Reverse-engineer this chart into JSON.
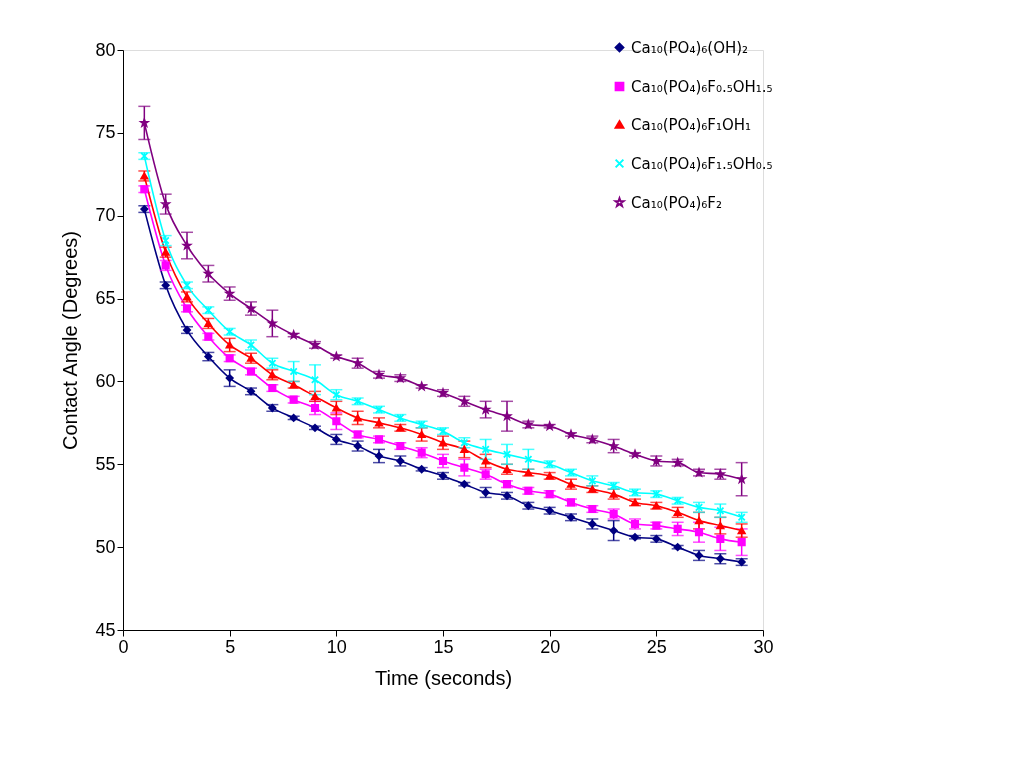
{
  "chart_data": {
    "type": "line",
    "xlabel": "Time (seconds)",
    "ylabel": "Contact Angle (Degrees)",
    "x": [
      1,
      2,
      3,
      4,
      5,
      6,
      7,
      8,
      9,
      10,
      11,
      12,
      13,
      14,
      15,
      16,
      17,
      18,
      19,
      20,
      21,
      22,
      23,
      24,
      25,
      26,
      27,
      28,
      29
    ],
    "xlim": [
      0,
      30
    ],
    "xticks": [
      0,
      5,
      10,
      15,
      20,
      25,
      30
    ],
    "ylim": [
      45,
      80
    ],
    "yticks": [
      45,
      50,
      55,
      60,
      65,
      70,
      75,
      80
    ],
    "grid": false,
    "legend": "top right",
    "series": [
      {
        "name": "Ca₁₀(PO₄)₆(OH)₂",
        "color": "#000080",
        "marker": "diamond",
        "values": [
          70.4,
          65.8,
          63.1,
          61.5,
          60.2,
          59.4,
          58.4,
          57.8,
          57.2,
          56.5,
          56.1,
          55.5,
          55.2,
          54.7,
          54.3,
          53.8,
          53.3,
          53.1,
          52.5,
          52.2,
          51.8,
          51.4,
          51.0,
          50.6,
          50.5,
          50.0,
          49.5,
          49.3,
          49.1
        ],
        "errors": [
          0.2,
          0.2,
          0.2,
          0.25,
          0.5,
          0.2,
          0.2,
          0.1,
          0.1,
          0.3,
          0.3,
          0.4,
          0.3,
          0.1,
          0.2,
          0.1,
          0.3,
          0.2,
          0.2,
          0.2,
          0.2,
          0.3,
          0.6,
          0.1,
          0.2,
          0.1,
          0.3,
          0.3,
          0.2
        ]
      },
      {
        "name": "Ca₁₀(PO₄)₆F₀.₅OH₁.₅",
        "color": "#ff00ff",
        "marker": "square",
        "values": [
          71.6,
          67.0,
          64.4,
          62.7,
          61.4,
          60.6,
          59.6,
          58.9,
          58.4,
          57.6,
          56.8,
          56.5,
          56.1,
          55.7,
          55.2,
          54.8,
          54.4,
          53.8,
          53.4,
          53.2,
          52.7,
          52.3,
          52.0,
          51.4,
          51.3,
          51.1,
          50.9,
          50.5,
          50.3
        ],
        "errors": [
          0.2,
          0.3,
          0.2,
          0.2,
          0.2,
          0.2,
          0.2,
          0.2,
          0.4,
          0.5,
          0.2,
          0.2,
          0.2,
          0.3,
          0.4,
          0.5,
          0.3,
          0.2,
          0.2,
          0.2,
          0.2,
          0.2,
          0.3,
          0.3,
          0.2,
          0.4,
          0.6,
          0.7,
          0.8
        ]
      },
      {
        "name": "Ca₁₀(PO₄)₆F₁OH₁",
        "color": "#ff0000",
        "marker": "triangle",
        "values": [
          72.4,
          67.8,
          65.1,
          63.5,
          62.2,
          61.4,
          60.4,
          59.8,
          59.1,
          58.4,
          57.8,
          57.5,
          57.2,
          56.8,
          56.3,
          55.9,
          55.2,
          54.7,
          54.5,
          54.3,
          53.8,
          53.5,
          53.2,
          52.7,
          52.5,
          52.1,
          51.6,
          51.3,
          51.0
        ],
        "errors": [
          0.3,
          0.3,
          0.3,
          0.3,
          0.4,
          0.3,
          0.3,
          0.2,
          0.3,
          0.4,
          0.4,
          0.3,
          0.2,
          0.4,
          0.4,
          0.5,
          0.4,
          0.3,
          0.2,
          0.2,
          0.3,
          0.2,
          0.3,
          0.2,
          0.2,
          0.3,
          0.5,
          0.5,
          0.4
        ]
      },
      {
        "name": "Ca₁₀(PO₄)₆F₁.₅OH₀.₅",
        "color": "#00ffff",
        "marker": "cross",
        "values": [
          73.6,
          68.5,
          65.8,
          64.3,
          63.0,
          62.2,
          61.1,
          60.6,
          60.1,
          59.2,
          58.8,
          58.3,
          57.8,
          57.4,
          57.0,
          56.3,
          55.9,
          55.6,
          55.3,
          55.0,
          54.5,
          54.0,
          53.7,
          53.3,
          53.2,
          52.8,
          52.4,
          52.2,
          51.8
        ],
        "errors": [
          0.2,
          0.3,
          0.2,
          0.2,
          0.2,
          0.3,
          0.3,
          0.6,
          0.9,
          0.3,
          0.2,
          0.2,
          0.2,
          0.2,
          0.2,
          0.3,
          0.6,
          0.6,
          0.6,
          0.2,
          0.2,
          0.3,
          0.2,
          0.2,
          0.2,
          0.2,
          0.3,
          0.4,
          0.3
        ]
      },
      {
        "name": "Ca₁₀(PO₄)₆F₂",
        "color": "#800080",
        "marker": "star",
        "values": [
          75.6,
          70.7,
          68.2,
          66.5,
          65.3,
          64.4,
          63.5,
          62.8,
          62.2,
          61.5,
          61.1,
          60.4,
          60.2,
          59.7,
          59.3,
          58.8,
          58.3,
          57.9,
          57.4,
          57.3,
          56.8,
          56.5,
          56.1,
          55.6,
          55.2,
          55.1,
          54.5,
          54.4,
          54.1
        ],
        "errors": [
          1.0,
          0.6,
          0.8,
          0.5,
          0.4,
          0.4,
          0.8,
          0.1,
          0.2,
          0.1,
          0.3,
          0.2,
          0.2,
          0.1,
          0.2,
          0.3,
          0.5,
          0.9,
          0.2,
          0.1,
          0.1,
          0.2,
          0.4,
          0.1,
          0.3,
          0.2,
          0.2,
          0.3,
          1.0
        ]
      }
    ]
  }
}
